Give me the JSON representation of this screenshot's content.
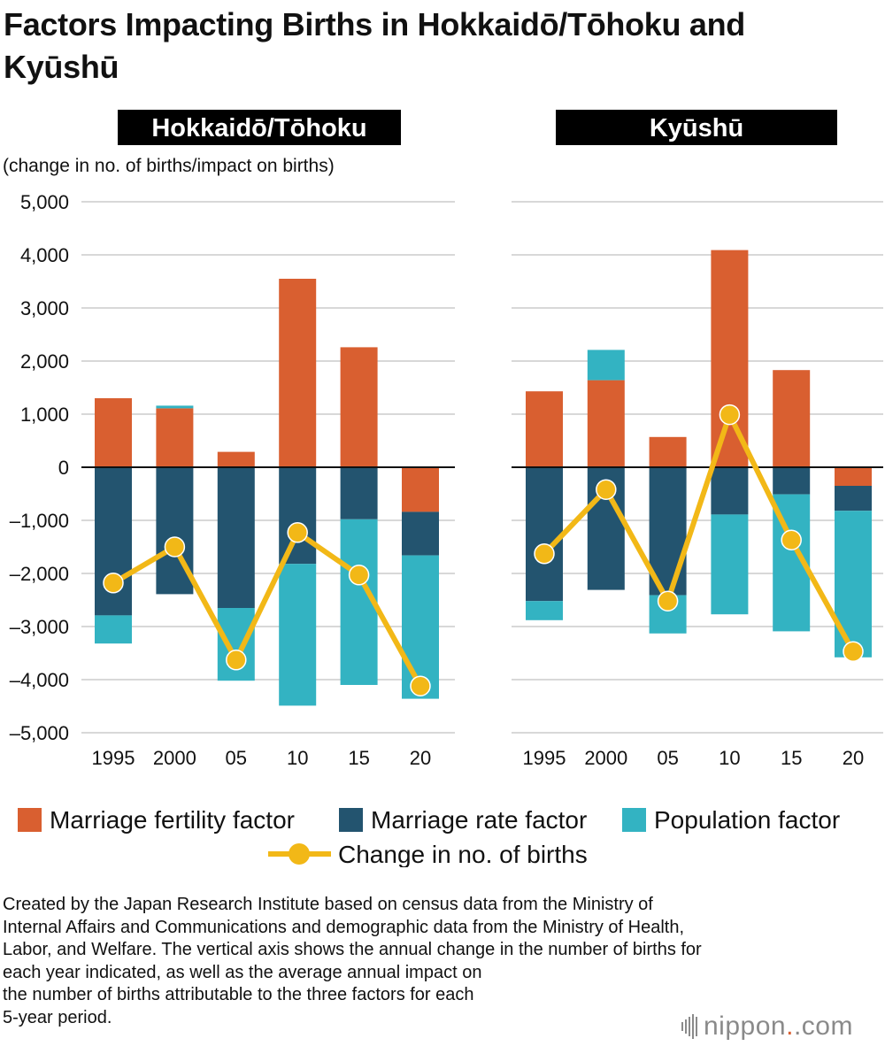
{
  "title": "Factors Impacting Births in Hokkaidō/Tōhoku and Kyūshū",
  "unit_label": "(change in no. of births/impact on births)",
  "colors": {
    "marriage_fertility": "#d95f30",
    "marriage_rate": "#23546f",
    "population": "#33b3c2",
    "births_line": "#f2b817",
    "grid": "#cccccc",
    "zero_line": "#111111",
    "header_bg": "#000000"
  },
  "chart_data": [
    {
      "type": "bar",
      "stacked": true,
      "title": "Hokkaidō/Tōhoku",
      "ylabel": "(change in no. of births/impact on births)",
      "ylim": [
        -5000,
        5000
      ],
      "yticks": [
        5000,
        4000,
        3000,
        2000,
        1000,
        0,
        -1000,
        -2000,
        -3000,
        -4000,
        -5000
      ],
      "ytick_labels": [
        "5,000",
        "4,000",
        "3,000",
        "2,000",
        "1,000",
        "0",
        "–1,000",
        "–2,000",
        "–3,000",
        "–4,000",
        "–5,000"
      ],
      "categories": [
        "1995",
        "2000",
        "05",
        "10",
        "15",
        "20"
      ],
      "grid": true,
      "series": [
        {
          "name": "Marriage fertility factor",
          "kind": "bar",
          "values": [
            1300,
            1110,
            290,
            3550,
            2260,
            -840
          ]
        },
        {
          "name": "Marriage rate factor",
          "kind": "bar",
          "values": [
            -2790,
            -2390,
            -2650,
            -1820,
            -980,
            -820
          ]
        },
        {
          "name": "Population factor",
          "kind": "bar",
          "values": [
            -530,
            50,
            -1370,
            -2670,
            -3120,
            -2700
          ]
        },
        {
          "name": "Change in no. of births",
          "kind": "line",
          "values": [
            -2180,
            -1500,
            -3630,
            -1230,
            -2030,
            -4120
          ]
        }
      ]
    },
    {
      "type": "bar",
      "stacked": true,
      "title": "Kyūshū",
      "ylim": [
        -5000,
        5000
      ],
      "categories": [
        "1995",
        "2000",
        "05",
        "10",
        "15",
        "20"
      ],
      "grid": true,
      "series": [
        {
          "name": "Marriage fertility factor",
          "kind": "bar",
          "values": [
            1430,
            1640,
            570,
            4090,
            1830,
            -350
          ]
        },
        {
          "name": "Marriage rate factor",
          "kind": "bar",
          "values": [
            -2520,
            -2310,
            -2410,
            -890,
            -510,
            -470
          ]
        },
        {
          "name": "Population factor",
          "kind": "bar",
          "values": [
            -360,
            570,
            -720,
            -1880,
            -2580,
            -2760
          ]
        },
        {
          "name": "Change in no. of births",
          "kind": "line",
          "values": [
            -1630,
            -420,
            -2520,
            990,
            -1370,
            -3470
          ]
        }
      ]
    }
  ],
  "legend": {
    "items": [
      {
        "label": "Marriage fertility factor",
        "key": "marriage_fertility"
      },
      {
        "label": "Marriage rate factor",
        "key": "marriage_rate"
      },
      {
        "label": "Population factor",
        "key": "population"
      },
      {
        "label": "Change in no. of births",
        "key": "births_line"
      }
    ],
    "placement": "bottom"
  },
  "note_lines": [
    "Created by the Japan Research Institute based on census data from the Ministry of",
    "Internal Affairs and Communications and demographic data from the Ministry of Health,",
    "Labor, and Welfare. The vertical axis shows the annual change in the number of births for",
    "each year indicated, as well as the average annual impact on",
    "the number of births attributable to the three factors for each",
    "5-year period."
  ],
  "logo": {
    "brand": "nippon",
    "suffix": ".com"
  }
}
